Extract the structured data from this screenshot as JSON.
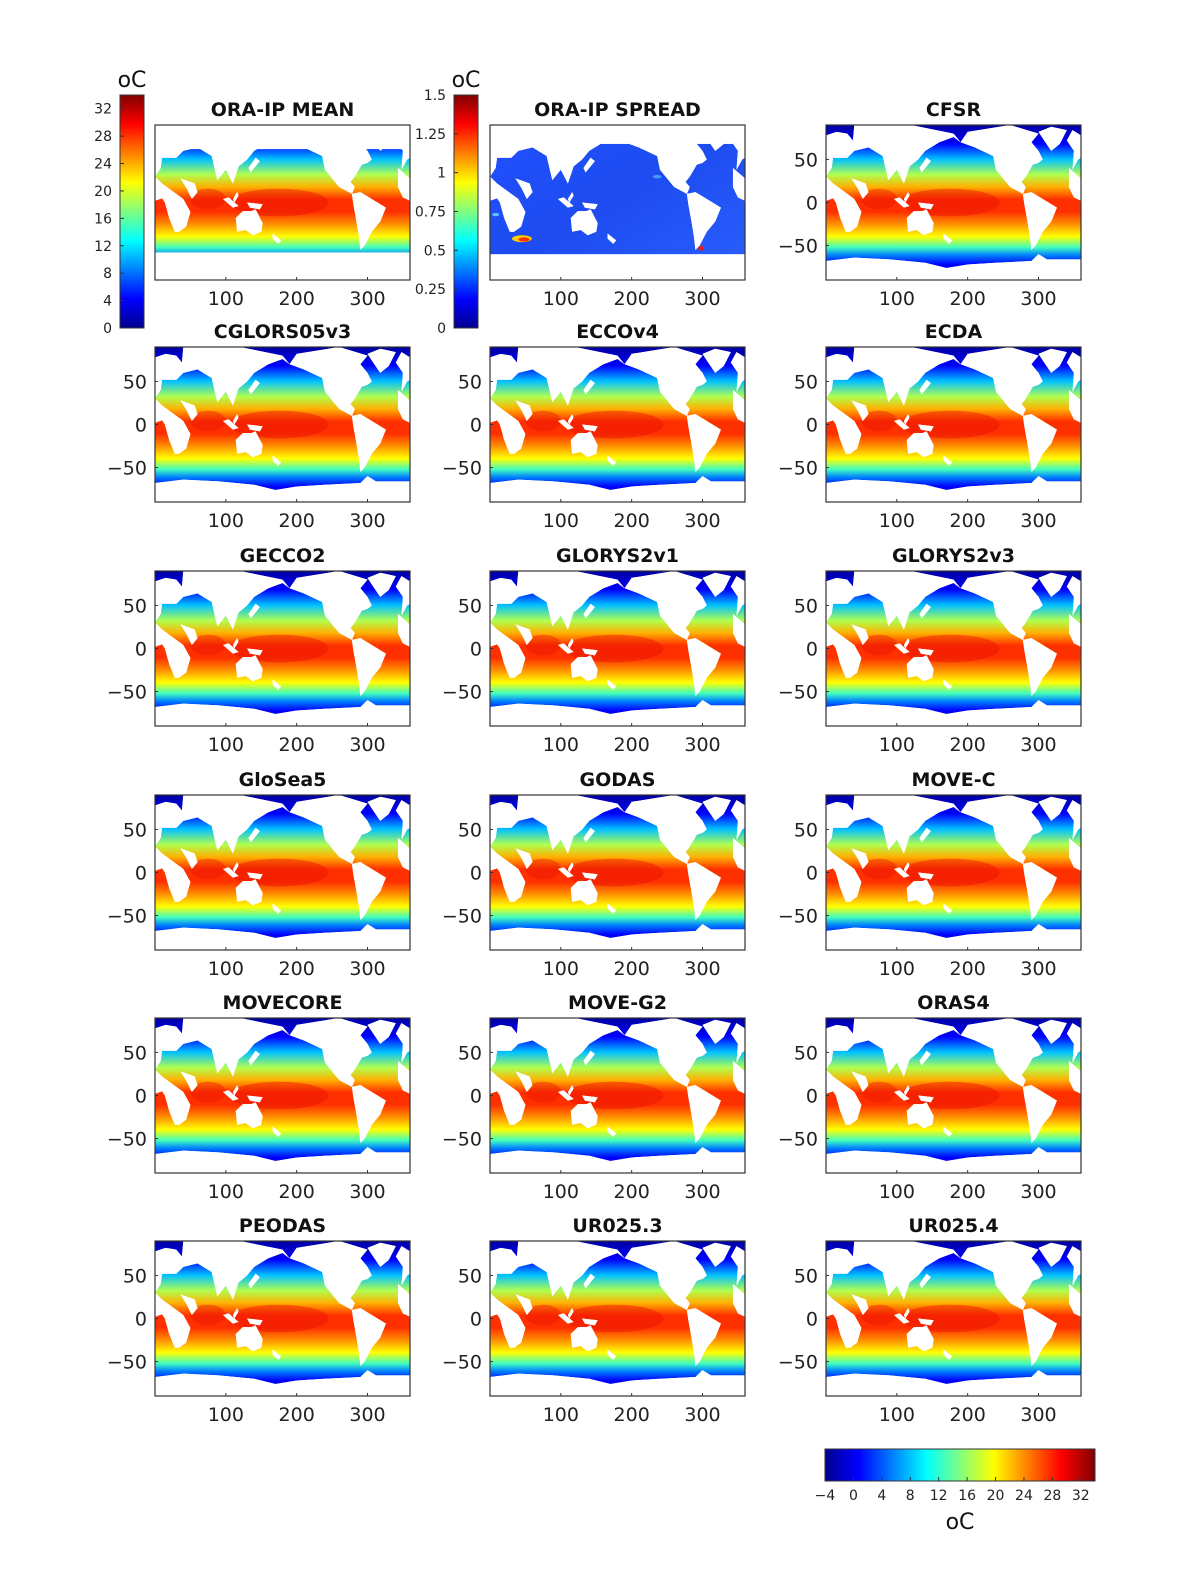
{
  "chart_data": {
    "type": "heatmap",
    "description_units": "sea surface temperature maps, longitude (degrees E) vs latitude (degrees N)",
    "panels": [
      {
        "title": "ORA-IP MEAN",
        "kind": "mean"
      },
      {
        "title": "ORA-IP SPREAD",
        "kind": "spread"
      },
      {
        "title": "CFSR",
        "kind": "product"
      },
      {
        "title": "CGLORS05v3",
        "kind": "product"
      },
      {
        "title": "ECCOv4",
        "kind": "product"
      },
      {
        "title": "ECDA",
        "kind": "product"
      },
      {
        "title": "GECCO2",
        "kind": "product"
      },
      {
        "title": "GLORYS2v1",
        "kind": "product"
      },
      {
        "title": "GLORYS2v3",
        "kind": "product"
      },
      {
        "title": "GloSea5",
        "kind": "product"
      },
      {
        "title": "GODAS",
        "kind": "product"
      },
      {
        "title": "MOVE-C",
        "kind": "product"
      },
      {
        "title": "MOVECORE",
        "kind": "product"
      },
      {
        "title": "MOVE-G2",
        "kind": "product"
      },
      {
        "title": "ORAS4",
        "kind": "product"
      },
      {
        "title": "PEODAS",
        "kind": "product"
      },
      {
        "title": "UR025.3",
        "kind": "product"
      },
      {
        "title": "UR025.4",
        "kind": "product"
      }
    ],
    "x_ticks": [
      "100",
      "200",
      "300"
    ],
    "x_tick_values": [
      100,
      200,
      300
    ],
    "xlim": [
      0,
      360
    ],
    "y_ticks": [
      "50",
      "0",
      "−50"
    ],
    "y_tick_values": [
      50,
      0,
      -50
    ],
    "ylim": [
      -90,
      90
    ],
    "colorbars": {
      "mean": {
        "unit": "oC",
        "ticks": [
          "32",
          "28",
          "24",
          "20",
          "16",
          "12",
          "8",
          "4",
          "0"
        ],
        "range": [
          0,
          34
        ]
      },
      "spread": {
        "unit": "oC",
        "ticks": [
          "1.5",
          "1.25",
          "1",
          "0.75",
          "0.5",
          "0.25",
          "0"
        ],
        "range": [
          0,
          1.5
        ]
      },
      "shared": {
        "unit": "oC",
        "ticks": [
          "−4",
          "0",
          "4",
          "8",
          "12",
          "16",
          "20",
          "24",
          "28",
          "32"
        ],
        "range": [
          -4,
          34
        ]
      }
    },
    "colormap": "jet",
    "colors": {
      "land": "#ffffff",
      "cold": "#00008f",
      "warm": "#800000"
    }
  }
}
